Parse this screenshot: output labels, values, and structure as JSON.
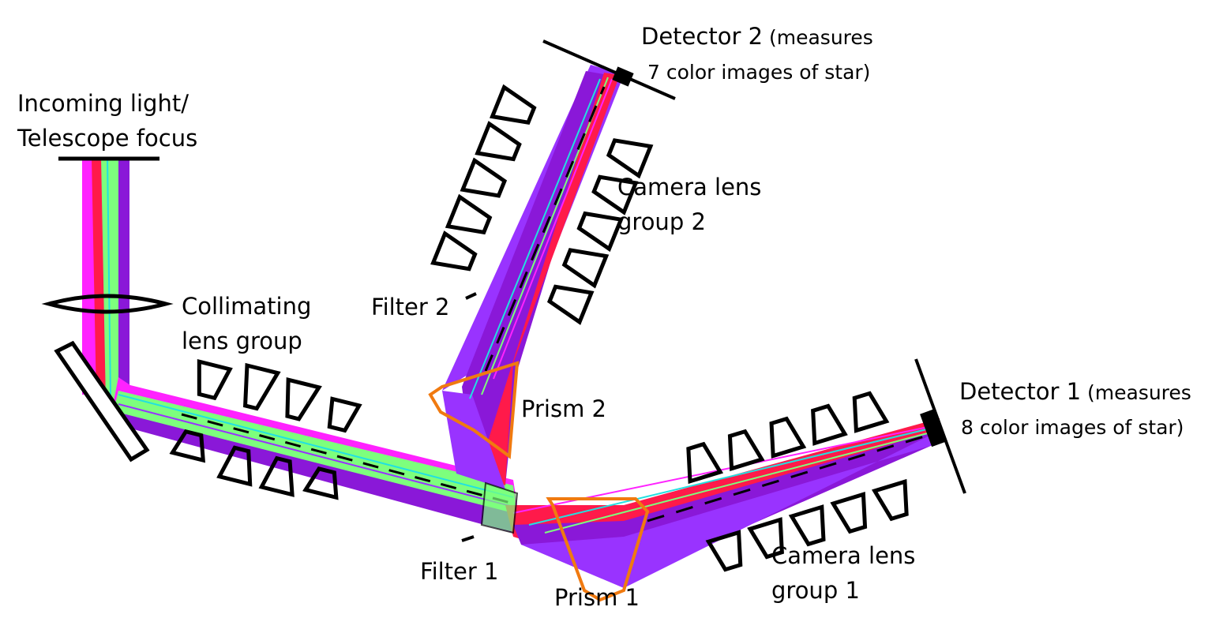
{
  "labels": {
    "incoming_line1": "Incoming light/",
    "incoming_line2": "Telescope focus",
    "collimating_line1": "Collimating",
    "collimating_line2": "lens group",
    "filter2": "Filter 2",
    "filter1": "Filter 1",
    "prism2": "Prism 2",
    "prism1": "Prism 1",
    "camera2_line1": "Camera lens",
    "camera2_line2": "group 2",
    "camera1_line1": "Camera lens",
    "camera1_line2": "group 1",
    "detector2_main": "Detector 2",
    "detector2_paren": " (measures",
    "detector2_line2": "7 color images of star)",
    "detector1_main": "Detector 1",
    "detector1_paren": " (measures",
    "detector1_line2": "8 color images of star)"
  },
  "colors": {
    "magenta": "#ff22ff",
    "red": "#ff1a4a",
    "green": "#7dff7d",
    "purple": "#8a18d8",
    "violet": "#9933ff",
    "cyan": "#22e0e0",
    "orange": "#f07a10",
    "text": "#000000"
  }
}
